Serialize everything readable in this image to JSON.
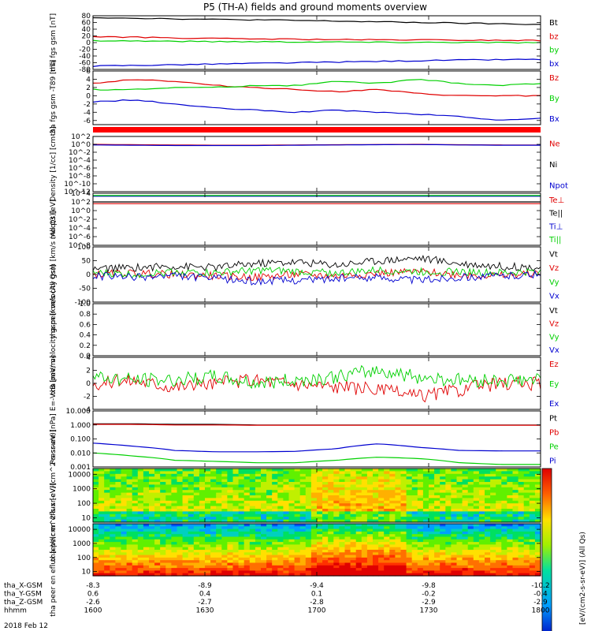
{
  "page_title": "P5 (TH-A) fields and ground moments overview",
  "footer_date": "2018 Feb 12",
  "x_axis": {
    "row_labels": [
      "tha_X-GSM",
      "tha_Y-GSM",
      "tha_Z-GSM",
      "hhmm"
    ],
    "tick_columns": [
      {
        "hhmm": "1600",
        "x": "-8.3",
        "y": "0.6",
        "z": "-2.6"
      },
      {
        "hhmm": "1630",
        "x": "-8.9",
        "y": "0.4",
        "z": "-2.7"
      },
      {
        "hhmm": "1700",
        "x": "-9.4",
        "y": "0.1",
        "z": "-2.8"
      },
      {
        "hhmm": "1730",
        "x": "-9.8",
        "y": "-0.2",
        "z": "-2.9"
      },
      {
        "hhmm": "1800",
        "x": "-10.2",
        "y": "-0.4",
        "z": "-2.9"
      }
    ],
    "time_range_hhmm": [
      "1600",
      "1800"
    ]
  },
  "colors": {
    "black": "#000000",
    "red": "#e00000",
    "green": "#00d000",
    "blue": "#0000d0"
  },
  "colorbar_label": "[eV/(cm2-s-sr-eV)] (All Qs)",
  "chart_data": [
    {
      "type": "line",
      "ylabel": "tha fgs gsm [nT]",
      "ylim": [
        -80,
        80
      ],
      "yticks": [
        "80",
        "60",
        "40",
        "20",
        "0",
        "-20",
        "-40",
        "-60",
        "-80"
      ],
      "series": [
        {
          "name": "Bt",
          "color": "black",
          "values": [
            75,
            73,
            71,
            69,
            68,
            66,
            64,
            62,
            60,
            58,
            56,
            54
          ]
        },
        {
          "name": "bz",
          "color": "red",
          "values": [
            18,
            16,
            14,
            12,
            11,
            10,
            9,
            8,
            8,
            7,
            7,
            6
          ]
        },
        {
          "name": "by",
          "color": "green",
          "values": [
            6,
            5,
            4,
            3,
            3,
            2,
            2,
            1,
            1,
            1,
            0,
            0
          ]
        },
        {
          "name": "bx",
          "color": "blue",
          "values": [
            -70,
            -68,
            -66,
            -64,
            -62,
            -60,
            -58,
            -56,
            -54,
            -52,
            -51,
            -50
          ]
        }
      ]
    },
    {
      "type": "line",
      "ylabel": "tha fgs gsm -T89 [nT]",
      "ylim": [
        -7,
        6
      ],
      "yticks": [
        "6",
        "4",
        "2",
        "0",
        "-2",
        "-4",
        "-6"
      ],
      "series": [
        {
          "name": "Bz",
          "color": "red",
          "values": [
            3,
            4,
            3.5,
            2.5,
            2,
            1.5,
            1,
            1.5,
            0.5,
            0,
            0,
            0
          ]
        },
        {
          "name": "By",
          "color": "green",
          "values": [
            1.5,
            1.5,
            2,
            2,
            2.5,
            2.5,
            3.5,
            3,
            4,
            3,
            2.5,
            3
          ]
        },
        {
          "name": "Bx",
          "color": "blue",
          "values": [
            -1.5,
            -1,
            -2,
            -3,
            -3.5,
            -4,
            -3.5,
            -4,
            -4.5,
            -5,
            -6,
            -5.5
          ]
        }
      ]
    },
    {
      "type": "line",
      "ylabel": "Density [1/cc] [cm-3]",
      "yscale": "log",
      "ylim": [
        1e-12,
        100
      ],
      "yticks": [
        "10^2",
        "10^0",
        "10^-2",
        "10^-4",
        "10^-6",
        "10^-8",
        "10^-10",
        "10^-12"
      ],
      "series": [
        {
          "name": "Ne",
          "color": "red",
          "values": [
            1,
            0.8,
            0.7,
            0.6,
            0.6,
            0.7,
            0.8,
            0.9,
            1,
            0.8,
            0.7,
            0.7
          ]
        },
        {
          "name": "Ni",
          "color": "black",
          "values": []
        },
        {
          "name": "Npot",
          "color": "blue",
          "values": [
            0.7,
            0.6,
            0.5,
            0.5,
            0.5,
            0.6,
            0.7,
            0.8,
            0.9,
            0.7,
            0.6,
            0.6
          ]
        }
      ]
    },
    {
      "type": "line",
      "ylabel": "moqt3 [eV]",
      "yscale": "log",
      "ylim": [
        1e-08,
        10000
      ],
      "yticks": [
        "10^4",
        "10^2",
        "10^0",
        "10^-2",
        "10^-4",
        "10^-6",
        "10^-8"
      ],
      "series": [
        {
          "name": "Te⊥",
          "color": "red",
          "values": [
            40,
            40,
            40,
            40,
            40,
            40,
            40,
            40,
            40,
            40,
            40,
            40
          ]
        },
        {
          "name": "Te||",
          "color": "black",
          "values": [
            100,
            100,
            100,
            100,
            100,
            100,
            100,
            100,
            100,
            100,
            100,
            100
          ]
        },
        {
          "name": "Ti⊥",
          "color": "blue",
          "values": [
            2000,
            2000,
            2000,
            2000,
            2000,
            2000,
            2000,
            2000,
            2000,
            2000,
            2000,
            2000
          ]
        },
        {
          "name": "Ti||",
          "color": "green",
          "values": [
            3000,
            3000,
            3000,
            3000,
            3000,
            3000,
            3000,
            3000,
            3000,
            3000,
            3000,
            3000
          ]
        }
      ]
    },
    {
      "type": "line",
      "ylabel": "tha peir velocity gsm [km/s (All Qs)]",
      "ylim": [
        -100,
        100
      ],
      "yticks": [
        "100",
        "50",
        "0",
        "-50",
        "-100"
      ],
      "series": [
        {
          "name": "Vt",
          "color": "black",
          "values": [
            20,
            25,
            30,
            25,
            40,
            45,
            35,
            50,
            60,
            40,
            30,
            25
          ]
        },
        {
          "name": "Vz",
          "color": "red",
          "values": [
            0,
            5,
            0,
            -5,
            -10,
            0,
            -5,
            5,
            10,
            0,
            -5,
            5
          ]
        },
        {
          "name": "Vy",
          "color": "green",
          "values": [
            5,
            0,
            10,
            5,
            15,
            10,
            5,
            15,
            10,
            10,
            5,
            10
          ]
        },
        {
          "name": "Vx",
          "color": "blue",
          "values": [
            -5,
            -10,
            -5,
            -15,
            -25,
            -20,
            -15,
            -10,
            -20,
            -10,
            -5,
            0
          ]
        }
      ]
    },
    {
      "type": "line",
      "ylabel": "tha peer velocity gsm [km/s (All Qs)]",
      "ylim": [
        0,
        1
      ],
      "yticks": [
        "1.0",
        "0.8",
        "0.6",
        "0.4",
        "0.2",
        "0.0"
      ],
      "series": [
        {
          "name": "Vt",
          "color": "black",
          "values": []
        },
        {
          "name": "Vz",
          "color": "red",
          "values": []
        },
        {
          "name": "Vy",
          "color": "green",
          "values": []
        },
        {
          "name": "Vx",
          "color": "blue",
          "values": []
        }
      ]
    },
    {
      "type": "line",
      "ylabel": "E=-VxB [mV/m]",
      "ylim": [
        -4,
        4
      ],
      "yticks": [
        "4",
        "2",
        "0",
        "-2",
        "-4"
      ],
      "series": [
        {
          "name": "Ez",
          "color": "red",
          "values": [
            0,
            0.5,
            -0.5,
            0,
            0.5,
            0,
            -0.5,
            -1,
            -2,
            -1,
            0,
            0
          ]
        },
        {
          "name": "Ey",
          "color": "green",
          "values": [
            1,
            0.5,
            0.5,
            1,
            0,
            0.5,
            1,
            2,
            1,
            0.5,
            0.5,
            0.5
          ]
        },
        {
          "name": "Ex",
          "color": "blue",
          "values": []
        }
      ]
    },
    {
      "type": "line",
      "ylabel": "Pressure [nPa]",
      "yscale": "log",
      "ylim": [
        0.001,
        10
      ],
      "yticks": [
        "10.000",
        "1.000",
        "0.100",
        "0.010",
        "0.001"
      ],
      "series": [
        {
          "name": "Pt",
          "color": "black",
          "values": [
            1.2,
            1.2,
            1.1,
            1.1,
            1.0,
            1.0,
            1.0,
            1.0,
            1.0,
            1.0,
            1.0,
            1.0
          ]
        },
        {
          "name": "Pb",
          "color": "red",
          "values": [
            1.1,
            1.1,
            1.0,
            1.0,
            0.95,
            0.95,
            0.95,
            0.95,
            0.95,
            0.95,
            0.95,
            0.95
          ]
        },
        {
          "name": "Pe",
          "color": "green",
          "values": [
            0.01,
            0.006,
            0.003,
            0.0025,
            0.002,
            0.002,
            0.003,
            0.005,
            0.004,
            0.002,
            0.0015,
            0.0015
          ]
        },
        {
          "name": "Pi",
          "color": "blue",
          "values": [
            0.05,
            0.03,
            0.015,
            0.012,
            0.012,
            0.013,
            0.02,
            0.045,
            0.025,
            0.015,
            0.014,
            0.014
          ]
        }
      ]
    },
    {
      "type": "heatmap",
      "ylabel": "tha peir en eflux [eV/(cm^2-s-sr-eV)]",
      "yscale": "log",
      "ylim": [
        5,
        25000
      ],
      "yticks": [
        "10000",
        "1000",
        "100",
        "10"
      ]
    },
    {
      "type": "heatmap",
      "ylabel": "tha peer en eflux [eV/(cm^2-s-sr-eV)]",
      "yscale": "log",
      "ylim": [
        5,
        25000
      ],
      "yticks": [
        "10000",
        "1000",
        "100",
        "10"
      ]
    }
  ]
}
